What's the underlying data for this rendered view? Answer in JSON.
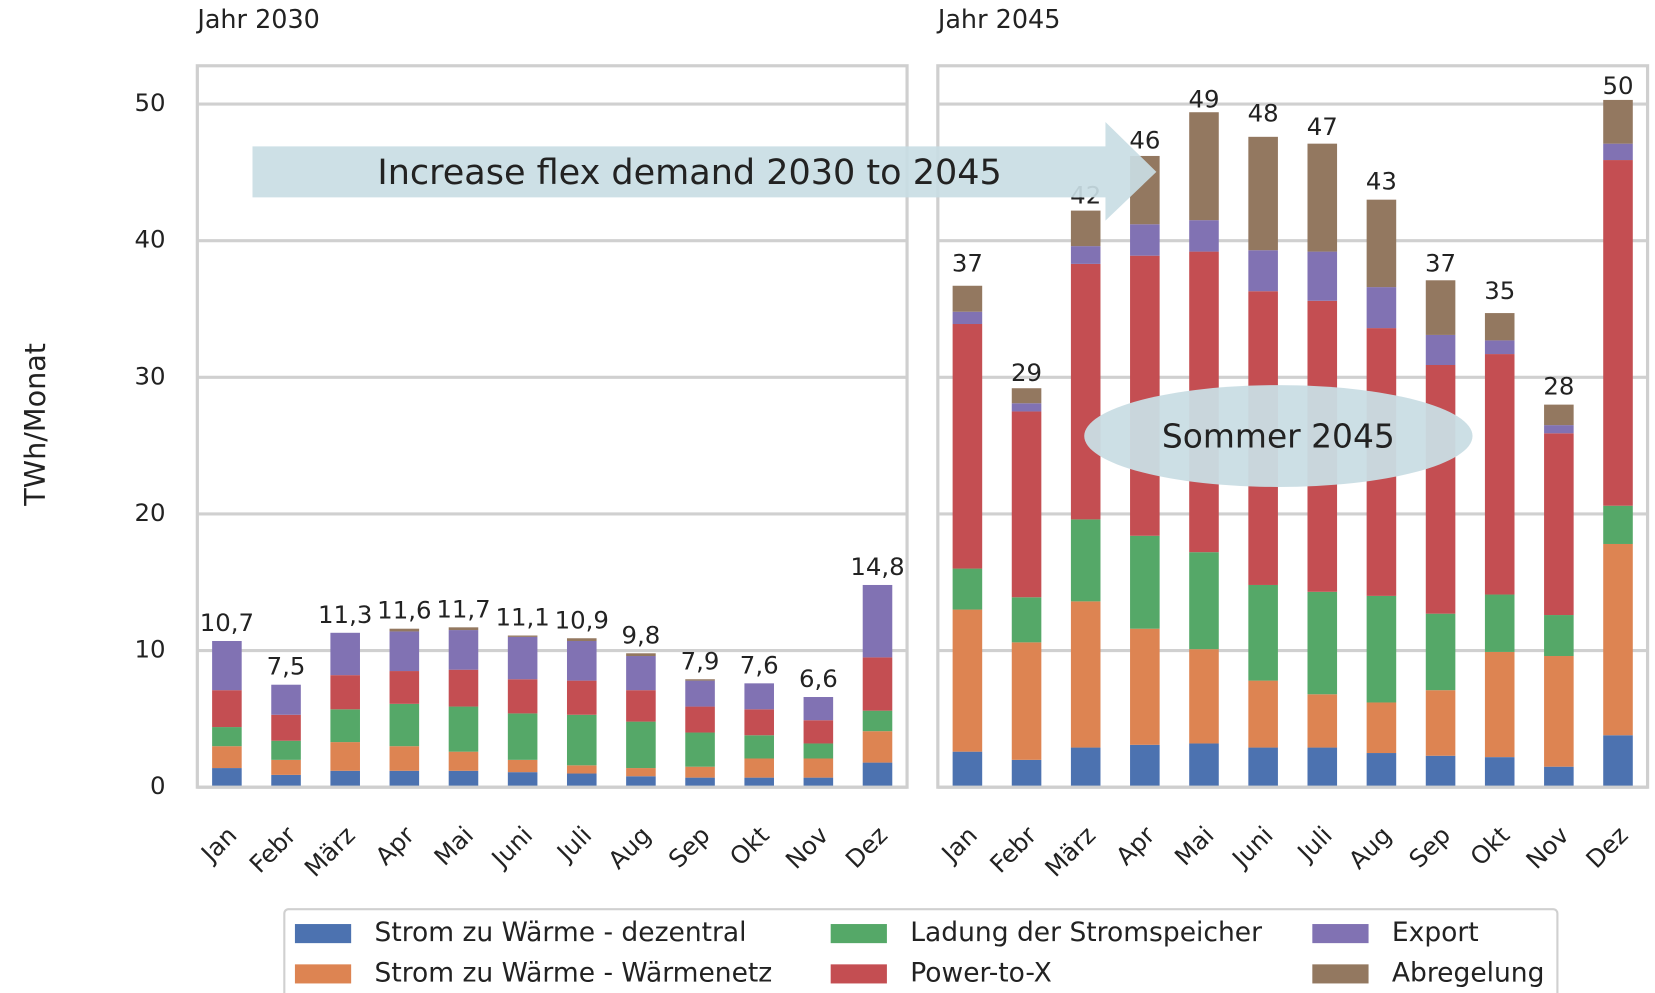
{
  "chart_data": [
    {
      "type": "bar",
      "stacked": true,
      "title": "Jahr 2030",
      "ylabel": "TWh/Monat",
      "categories": [
        "Jan",
        "Febr",
        "März",
        "Apr",
        "Mai",
        "Juni",
        "Juli",
        "Aug",
        "Sep",
        "Okt",
        "Nov",
        "Dez"
      ],
      "ylim": [
        0,
        52.8
      ],
      "yticks": [
        0,
        10,
        20,
        30,
        40,
        50
      ],
      "grid": true,
      "series": [
        {
          "name": "Strom zu Wärme - dezentral",
          "color": "#4c72b0",
          "values": [
            1.4,
            0.9,
            1.2,
            1.2,
            1.2,
            1.1,
            1.0,
            0.8,
            0.7,
            0.7,
            0.7,
            1.8
          ]
        },
        {
          "name": "Strom zu Wärme - Wärmenetz",
          "color": "#dd8452",
          "values": [
            1.6,
            1.1,
            2.1,
            1.8,
            1.4,
            0.9,
            0.6,
            0.6,
            0.8,
            1.4,
            1.4,
            2.3
          ]
        },
        {
          "name": "Ladung der Stromspeicher",
          "color": "#55a868",
          "values": [
            1.4,
            1.4,
            2.4,
            3.1,
            3.3,
            3.4,
            3.7,
            3.4,
            2.5,
            1.7,
            1.1,
            1.5
          ]
        },
        {
          "name": "Power-to-X",
          "color": "#c44e52",
          "values": [
            2.7,
            1.9,
            2.5,
            2.4,
            2.7,
            2.5,
            2.5,
            2.3,
            1.9,
            1.9,
            1.7,
            3.9
          ]
        },
        {
          "name": "Export",
          "color": "#8172b3",
          "values": [
            3.6,
            2.2,
            3.1,
            2.9,
            2.9,
            3.1,
            2.9,
            2.5,
            1.9,
            1.9,
            1.7,
            5.3
          ]
        },
        {
          "name": "Abregelung",
          "color": "#937860",
          "values": [
            0,
            0,
            0,
            0.2,
            0.2,
            0.1,
            0.2,
            0.2,
            0.1,
            0,
            0,
            0
          ]
        }
      ],
      "totals": [
        10.7,
        7.5,
        11.3,
        11.6,
        11.7,
        11.1,
        10.9,
        9.8,
        7.9,
        7.6,
        6.6,
        14.8
      ],
      "total_labels": [
        "10,7",
        "7,5",
        "11,3",
        "11,6",
        "11,7",
        "11,1",
        "10,9",
        "9,8",
        "7,9",
        "7,6",
        "6,6",
        "14,8"
      ]
    },
    {
      "type": "bar",
      "stacked": true,
      "title": "Jahr 2045",
      "categories": [
        "Jan",
        "Febr",
        "März",
        "Apr",
        "Mai",
        "Juni",
        "Juli",
        "Aug",
        "Sep",
        "Okt",
        "Nov",
        "Dez"
      ],
      "ylim": [
        0,
        52.8
      ],
      "yticks": [
        0,
        10,
        20,
        30,
        40,
        50
      ],
      "grid": true,
      "series": [
        {
          "color": "#4c72b0",
          "values": [
            2.6,
            2.0,
            2.9,
            3.1,
            3.2,
            2.9,
            2.9,
            2.5,
            2.3,
            2.2,
            1.5,
            3.8
          ]
        },
        {
          "color": "#dd8452",
          "values": [
            10.4,
            8.6,
            10.7,
            8.5,
            6.9,
            4.9,
            3.9,
            3.7,
            4.8,
            7.7,
            8.1,
            14.0
          ]
        },
        {
          "color": "#55a868",
          "values": [
            3.0,
            3.3,
            6.0,
            6.8,
            7.1,
            7.0,
            7.5,
            7.8,
            5.6,
            4.2,
            3.0,
            2.8
          ]
        },
        {
          "color": "#c44e52",
          "values": [
            17.9,
            13.6,
            18.7,
            20.5,
            22.0,
            21.5,
            21.3,
            19.6,
            18.2,
            17.6,
            13.3,
            25.3
          ]
        },
        {
          "color": "#8172b3",
          "values": [
            0.9,
            0.6,
            1.3,
            2.3,
            2.3,
            3.0,
            3.6,
            3.0,
            2.2,
            1.0,
            0.6,
            1.2
          ]
        },
        {
          "color": "#937860",
          "values": [
            1.9,
            1.1,
            2.6,
            5.0,
            7.9,
            8.3,
            7.9,
            6.4,
            4.0,
            2.0,
            1.5,
            3.2
          ]
        }
      ],
      "totals": [
        37,
        29,
        42,
        46,
        49,
        48,
        47,
        43,
        37,
        35,
        28,
        50
      ],
      "annotations": [
        "Increase flex demand 2030 to 2045",
        "Sommer 2045"
      ]
    }
  ]
}
